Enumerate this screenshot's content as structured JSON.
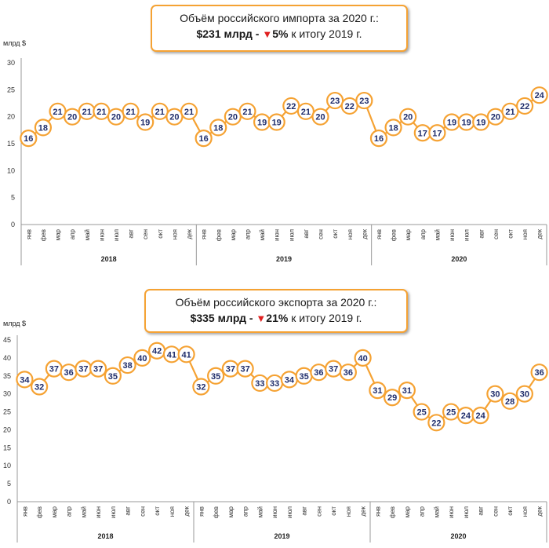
{
  "chart_data": [
    {
      "type": "line",
      "id": "import",
      "title_line1": "Объём российского импорта за 2020 г.:",
      "title_amount": "$231 млрд -",
      "title_change": "5%",
      "title_suffix": "к итогу 2019 г.",
      "ylabel": "млрд $",
      "ylim": [
        0,
        30
      ],
      "yticks": [
        0,
        5,
        10,
        15,
        20,
        25,
        30
      ],
      "months": [
        "янв",
        "фев",
        "мар",
        "апр",
        "май",
        "июн",
        "июл",
        "авг",
        "сен",
        "окт",
        "ноя",
        "дек"
      ],
      "years": [
        "2018",
        "2019",
        "2020"
      ],
      "values": [
        16,
        18,
        21,
        20,
        21,
        21,
        20,
        21,
        19,
        21,
        20,
        21,
        16,
        18,
        20,
        21,
        19,
        19,
        22,
        21,
        20,
        23,
        22,
        23,
        16,
        18,
        20,
        17,
        17,
        19,
        19,
        19,
        20,
        21,
        22,
        24
      ]
    },
    {
      "type": "line",
      "id": "export",
      "title_line1": "Объём российского экспорта за 2020 г.:",
      "title_amount": "$335 млрд -",
      "title_change": "21%",
      "title_suffix": "к итогу 2019 г.",
      "ylabel": "млрд $",
      "ylim": [
        0,
        45
      ],
      "yticks": [
        0,
        5,
        10,
        15,
        20,
        25,
        30,
        35,
        40,
        45
      ],
      "months": [
        "янв",
        "фев",
        "мар",
        "апр",
        "май",
        "июн",
        "июл",
        "авг",
        "сен",
        "окт",
        "ноя",
        "дек"
      ],
      "years": [
        "2018",
        "2019",
        "2020"
      ],
      "values": [
        34,
        32,
        37,
        36,
        37,
        37,
        35,
        38,
        40,
        42,
        41,
        41,
        32,
        35,
        37,
        37,
        33,
        33,
        34,
        35,
        36,
        37,
        36,
        40,
        31,
        29,
        31,
        25,
        22,
        25,
        24,
        24,
        30,
        28,
        30,
        36
      ]
    }
  ],
  "colors": {
    "line": "#f5a233",
    "marker_fill": "#ffffff",
    "label": "#1f2d6b",
    "down_arrow": "#e02020",
    "grid": "#d9d9d9"
  }
}
